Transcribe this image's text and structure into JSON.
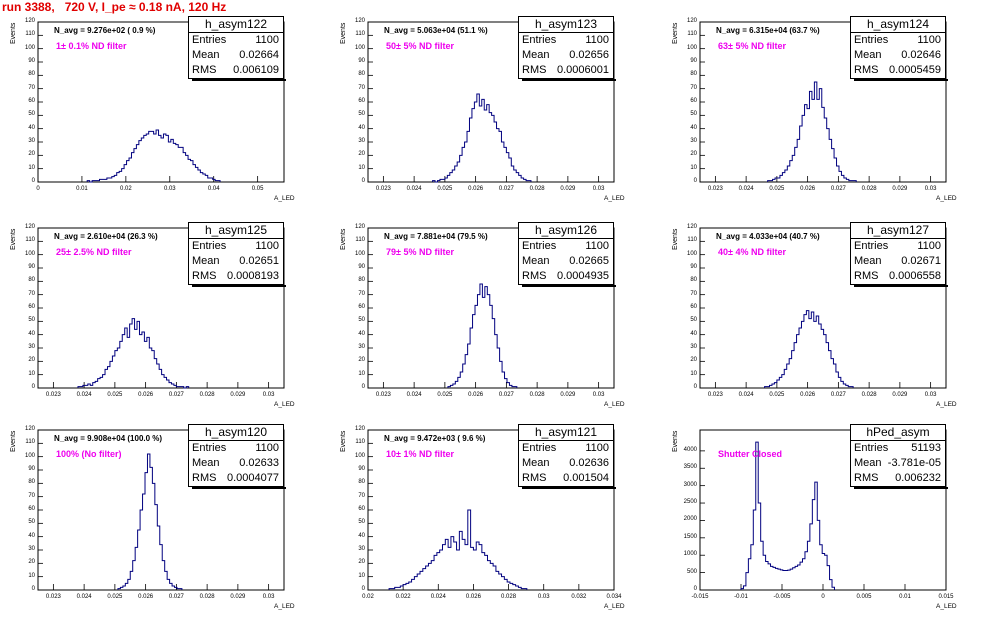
{
  "title": "run 3388,   720 V, I_pe ≈ 0.18 nA, 120 Hz",
  "stats_labels": {
    "entries": "Entries",
    "mean": "Mean",
    "rms": "RMS"
  },
  "colors": {
    "title": "#e00000",
    "histogram": "#00007f",
    "annotation": "#ee00ee"
  },
  "chart_data": [
    {
      "type": "bar",
      "name": "h_asym122",
      "ytitle": "Events",
      "xtitle": "A_LED",
      "nlabel": "N_avg = 9.276e+02 ( 0.9 %)",
      "filter": "1± 0.1% ND filter",
      "stats": {
        "entries": "1100",
        "mean": "0.02664",
        "rms": "0.006109"
      },
      "xlim": [
        0,
        0.056
      ],
      "ylim": [
        0,
        120
      ],
      "yticks": [
        0,
        10,
        20,
        30,
        40,
        50,
        60,
        70,
        80,
        90,
        100,
        110,
        120
      ],
      "xticks": [
        "0",
        "0.01",
        "0.02",
        "0.03",
        "0.04",
        "0.05"
      ],
      "xtick_values": [
        0,
        0.01,
        0.02,
        0.03,
        0.04,
        0.05
      ],
      "bins": {
        "x0": 0.0112,
        "width": 0.00056,
        "values": [
          1,
          0,
          1,
          1,
          1,
          2,
          2,
          2,
          3,
          3,
          4,
          5,
          7,
          8,
          10,
          13,
          16,
          18,
          22,
          25,
          28,
          31,
          33,
          35,
          36,
          38,
          38,
          36,
          39,
          35,
          33,
          36,
          35,
          30,
          32,
          29,
          28,
          26,
          26,
          22,
          20,
          17,
          16,
          13,
          11,
          9,
          7,
          6,
          5,
          3,
          3,
          2,
          1,
          1
        ]
      }
    },
    {
      "type": "bar",
      "name": "h_asym123",
      "ytitle": "Events",
      "xtitle": "A_LED",
      "nlabel": "N_avg = 5.063e+04 (51.1 %)",
      "filter": "50± 5% ND filter",
      "stats": {
        "entries": "1100",
        "mean": "0.02656",
        "rms": "0.0006001"
      },
      "xlim": [
        0.0225,
        0.0305
      ],
      "ylim": [
        0,
        120
      ],
      "yticks": [
        0,
        10,
        20,
        30,
        40,
        50,
        60,
        70,
        80,
        90,
        100,
        110,
        120
      ],
      "xticks": [
        "0.023",
        "0.024",
        "0.025",
        "0.026",
        "0.027",
        "0.028",
        "0.029",
        "0.03"
      ],
      "xtick_values": [
        0.023,
        0.024,
        0.025,
        0.026,
        0.027,
        0.028,
        0.029,
        0.03
      ],
      "bins": {
        "x0": 0.0246,
        "width": 8e-05,
        "values": [
          1,
          0,
          1,
          2,
          2,
          3,
          5,
          7,
          9,
          12,
          15,
          20,
          26,
          30,
          38,
          48,
          55,
          60,
          66,
          57,
          62,
          54,
          58,
          52,
          50,
          45,
          40,
          38,
          30,
          26,
          22,
          18,
          12,
          9,
          7,
          5,
          3,
          2,
          1,
          1
        ]
      }
    },
    {
      "type": "bar",
      "name": "h_asym124",
      "ytitle": "Events",
      "xtitle": "A_LED",
      "nlabel": "N_avg = 6.315e+04 (63.7 %)",
      "filter": "63± 5% ND filter",
      "stats": {
        "entries": "1100",
        "mean": "0.02646",
        "rms": "0.0005459"
      },
      "xlim": [
        0.0225,
        0.0305
      ],
      "ylim": [
        0,
        120
      ],
      "yticks": [
        0,
        10,
        20,
        30,
        40,
        50,
        60,
        70,
        80,
        90,
        100,
        110,
        120
      ],
      "xticks": [
        "0.023",
        "0.024",
        "0.025",
        "0.026",
        "0.027",
        "0.028",
        "0.029",
        "0.03"
      ],
      "xtick_values": [
        0.023,
        0.024,
        0.025,
        0.026,
        0.027,
        0.028,
        0.029,
        0.03
      ],
      "bins": {
        "x0": 0.0247,
        "width": 8e-05,
        "values": [
          1,
          1,
          2,
          3,
          3,
          5,
          7,
          9,
          12,
          16,
          20,
          26,
          32,
          42,
          50,
          58,
          55,
          68,
          62,
          75,
          62,
          70,
          56,
          48,
          40,
          32,
          25,
          18,
          12,
          8,
          5,
          3,
          2,
          1,
          1,
          1
        ]
      }
    },
    {
      "type": "bar",
      "name": "h_asym125",
      "ytitle": "Events",
      "xtitle": "A_LED",
      "nlabel": "N_avg = 2.610e+04 (26.3 %)",
      "filter": "25± 2.5% ND filter",
      "stats": {
        "entries": "1100",
        "mean": "0.02651",
        "rms": "0.0008193"
      },
      "xlim": [
        0.0225,
        0.0305
      ],
      "ylim": [
        0,
        120
      ],
      "yticks": [
        0,
        10,
        20,
        30,
        40,
        50,
        60,
        70,
        80,
        90,
        100,
        110,
        120
      ],
      "xticks": [
        "0.023",
        "0.024",
        "0.025",
        "0.026",
        "0.027",
        "0.028",
        "0.029",
        "0.03"
      ],
      "xtick_values": [
        0.023,
        0.024,
        0.025,
        0.026,
        0.027,
        0.028,
        0.029,
        0.03
      ],
      "bins": {
        "x0": 0.0238,
        "width": 8e-05,
        "values": [
          1,
          1,
          2,
          2,
          3,
          2,
          4,
          5,
          7,
          8,
          10,
          14,
          16,
          20,
          24,
          28,
          30,
          35,
          40,
          45,
          38,
          48,
          52,
          44,
          50,
          40,
          42,
          35,
          38,
          30,
          28,
          22,
          18,
          14,
          10,
          8,
          6,
          4,
          3,
          2,
          1,
          1,
          1,
          0,
          1
        ]
      }
    },
    {
      "type": "bar",
      "name": "h_asym126",
      "ytitle": "Events",
      "xtitle": "A_LED",
      "nlabel": "N_avg = 7.881e+04 (79.5 %)",
      "filter": "79± 5% ND filter",
      "stats": {
        "entries": "1100",
        "mean": "0.02665",
        "rms": "0.0004935"
      },
      "xlim": [
        0.0225,
        0.0305
      ],
      "ylim": [
        0,
        120
      ],
      "yticks": [
        0,
        10,
        20,
        30,
        40,
        50,
        60,
        70,
        80,
        90,
        100,
        110,
        120
      ],
      "xticks": [
        "0.023",
        "0.024",
        "0.025",
        "0.026",
        "0.027",
        "0.028",
        "0.029",
        "0.03"
      ],
      "xtick_values": [
        0.023,
        0.024,
        0.025,
        0.026,
        0.027,
        0.028,
        0.029,
        0.03
      ],
      "bins": {
        "x0": 0.0251,
        "width": 8e-05,
        "values": [
          1,
          2,
          3,
          5,
          8,
          12,
          18,
          25,
          33,
          45,
          55,
          62,
          70,
          78,
          68,
          76,
          70,
          62,
          52,
          40,
          30,
          20,
          12,
          7,
          4,
          2,
          1,
          1
        ]
      }
    },
    {
      "type": "bar",
      "name": "h_asym127",
      "ytitle": "Events",
      "xtitle": "A_LED",
      "nlabel": "N_avg = 4.033e+04 (40.7 %)",
      "filter": "40± 4% ND filter",
      "stats": {
        "entries": "1100",
        "mean": "0.02671",
        "rms": "0.0006558"
      },
      "xlim": [
        0.0225,
        0.0305
      ],
      "ylim": [
        0,
        120
      ],
      "yticks": [
        0,
        10,
        20,
        30,
        40,
        50,
        60,
        70,
        80,
        90,
        100,
        110,
        120
      ],
      "xticks": [
        "0.023",
        "0.024",
        "0.025",
        "0.026",
        "0.027",
        "0.028",
        "0.029",
        "0.03"
      ],
      "xtick_values": [
        0.023,
        0.024,
        0.025,
        0.026,
        0.027,
        0.028,
        0.029,
        0.03
      ],
      "bins": {
        "x0": 0.0246,
        "width": 8e-05,
        "values": [
          1,
          1,
          2,
          3,
          4,
          6,
          8,
          10,
          14,
          18,
          22,
          28,
          34,
          40,
          45,
          50,
          55,
          58,
          52,
          57,
          50,
          54,
          48,
          44,
          40,
          34,
          28,
          22,
          18,
          12,
          8,
          5,
          3,
          2,
          1,
          1
        ]
      }
    },
    {
      "type": "bar",
      "name": "h_asym120",
      "ytitle": "Events",
      "xtitle": "A_LED",
      "nlabel": "N_avg = 9.908e+04 (100.0 %)",
      "filter": "100% (No filter)",
      "stats": {
        "entries": "1100",
        "mean": "0.02633",
        "rms": "0.0004077"
      },
      "xlim": [
        0.0225,
        0.0305
      ],
      "ylim": [
        0,
        120
      ],
      "yticks": [
        0,
        10,
        20,
        30,
        40,
        50,
        60,
        70,
        80,
        90,
        100,
        110,
        120
      ],
      "xticks": [
        "0.023",
        "0.024",
        "0.025",
        "0.026",
        "0.027",
        "0.028",
        "0.029",
        "0.03"
      ],
      "xtick_values": [
        0.023,
        0.024,
        0.025,
        0.026,
        0.027,
        0.028,
        0.029,
        0.03
      ],
      "bins": {
        "x0": 0.0251,
        "width": 8e-05,
        "values": [
          1,
          2,
          3,
          5,
          8,
          14,
          22,
          32,
          45,
          60,
          72,
          88,
          102,
          92,
          80,
          64,
          48,
          34,
          22,
          14,
          8,
          5,
          3,
          2,
          1,
          1
        ]
      }
    },
    {
      "type": "bar",
      "name": "h_asym121",
      "ytitle": "Events",
      "xtitle": "A_LED",
      "nlabel": "N_avg = 9.472e+03 ( 9.6 %)",
      "filter": "10± 1% ND filter",
      "stats": {
        "entries": "1100",
        "mean": "0.02636",
        "rms": "0.001504"
      },
      "xlim": [
        0.02,
        0.034
      ],
      "ylim": [
        0,
        120
      ],
      "yticks": [
        0,
        10,
        20,
        30,
        40,
        50,
        60,
        70,
        80,
        90,
        100,
        110,
        120
      ],
      "xticks": [
        "0.02",
        "0.022",
        "0.024",
        "0.026",
        "0.028",
        "0.03",
        "0.032",
        "0.034"
      ],
      "xtick_values": [
        0.02,
        0.022,
        0.024,
        0.026,
        0.028,
        0.03,
        0.032,
        0.034
      ],
      "bins": {
        "x0": 0.0212,
        "width": 0.00016,
        "values": [
          1,
          1,
          2,
          2,
          3,
          4,
          5,
          6,
          8,
          10,
          12,
          14,
          16,
          18,
          20,
          22,
          26,
          28,
          30,
          34,
          38,
          32,
          40,
          36,
          30,
          44,
          38,
          34,
          60,
          32,
          30,
          36,
          34,
          28,
          26,
          22,
          20,
          18,
          14,
          12,
          10,
          8,
          6,
          5,
          4,
          3,
          2,
          1,
          1
        ]
      }
    },
    {
      "type": "bar",
      "name": "hPed_asym",
      "ytitle": "Events",
      "xtitle": "A_LED",
      "nlabel": "",
      "filter": "Shutter Closed",
      "stats": {
        "entries": "51193",
        "mean": "-3.781e-05",
        "rms": "0.006232"
      },
      "xlim": [
        -0.015,
        0.015
      ],
      "ylim": [
        0,
        4600
      ],
      "yticks": [
        0,
        500,
        1000,
        1500,
        2000,
        2500,
        3000,
        3500,
        4000
      ],
      "xticks": [
        "-0.015",
        "-0.01",
        "-0.005",
        "0",
        "0.005",
        "0.01",
        "0.015"
      ],
      "xtick_values": [
        -0.015,
        -0.01,
        -0.005,
        0,
        0.005,
        0.01,
        0.015
      ],
      "bins": {
        "x0": -0.01,
        "width": 0.0003,
        "values": [
          40,
          120,
          500,
          900,
          1300,
          2300,
          4250,
          2500,
          1400,
          1000,
          820,
          750,
          680,
          650,
          620,
          600,
          580,
          560,
          560,
          570,
          600,
          640,
          680,
          720,
          800,
          900,
          1100,
          1400,
          1900,
          2600,
          3100,
          2000,
          1300,
          1050,
          1000,
          700,
          300,
          80
        ]
      }
    }
  ]
}
